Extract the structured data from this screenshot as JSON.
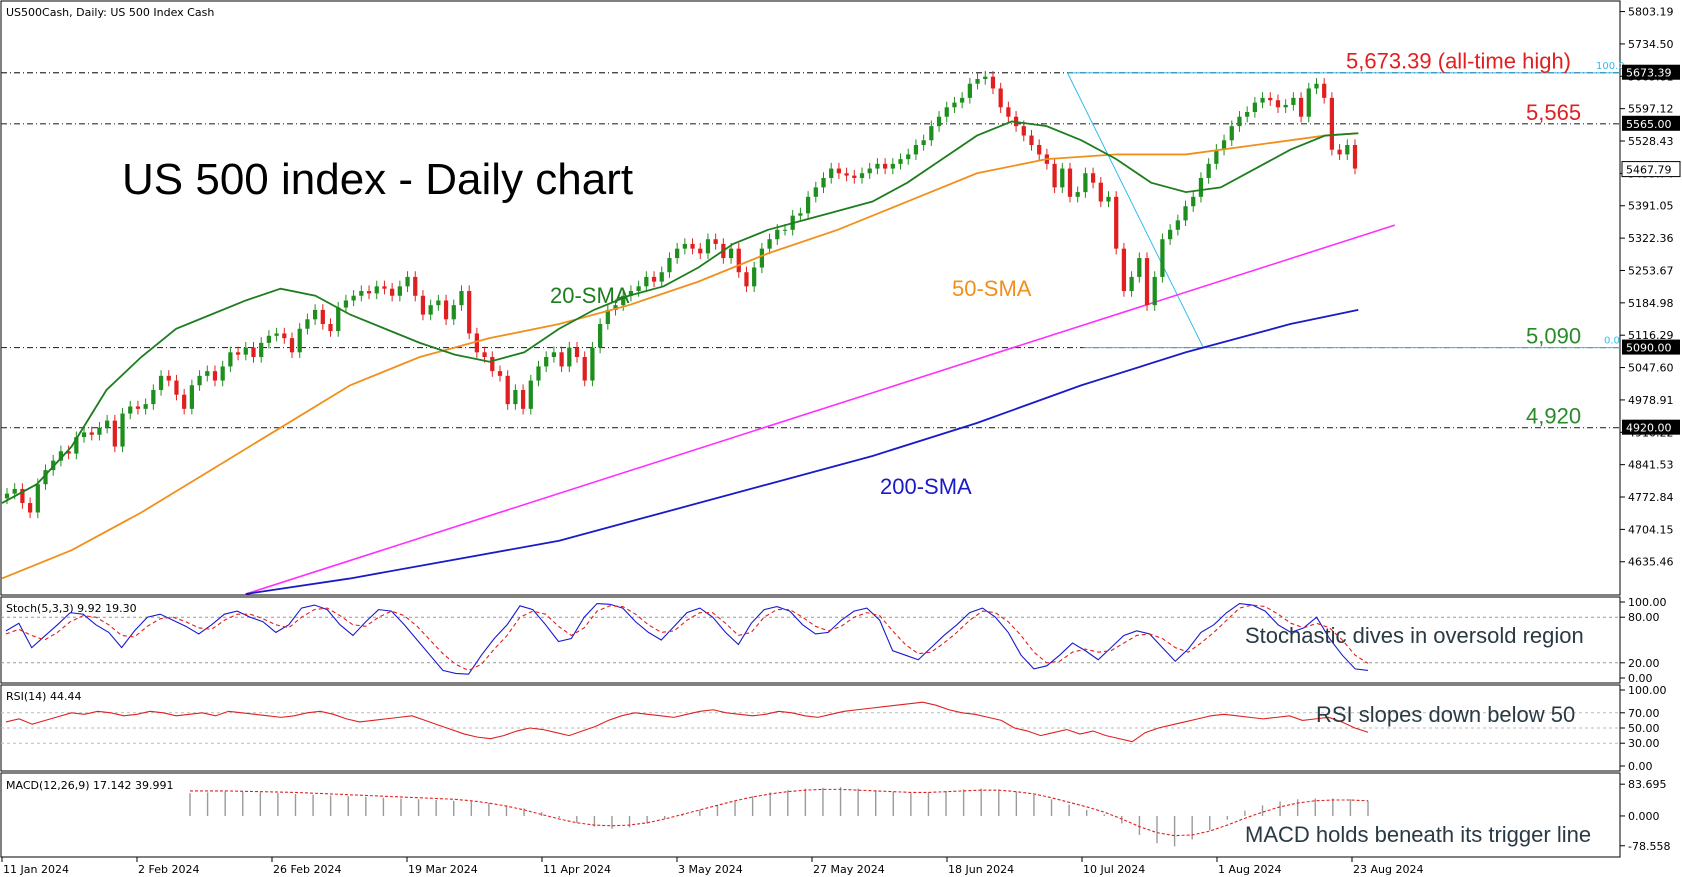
{
  "header": {
    "symbol_text": "US500Cash, Daily:  US 500 Index Cash"
  },
  "title": "US 500 index - Daily chart",
  "colors": {
    "bull": "#1e8f1e",
    "bear": "#e02020",
    "sma20": "#1e7d1e",
    "sma50": "#f0901a",
    "sma200": "#1a1ac8",
    "trendline": "#ff30ff",
    "fib": "#33bbee",
    "level_red": "#e02020",
    "level_green": "#2a8a2a"
  },
  "chart_data": {
    "type": "candlestick",
    "price_axis": {
      "ticks": [
        "5803.19",
        "5734.50",
        "5665.81",
        "5597.12",
        "5528.43",
        "5459.74",
        "5391.05",
        "5322.36",
        "5253.67",
        "5184.98",
        "5116.29",
        "5047.60",
        "4978.91",
        "4910.22",
        "4841.53",
        "4772.84",
        "4704.15",
        "4635.46"
      ],
      "range": [
        4567,
        5815
      ]
    },
    "date_axis": [
      "11 Jan 2024",
      "2 Feb 2024",
      "26 Feb 2024",
      "19 Mar 2024",
      "11 Apr 2024",
      "3 May 2024",
      "27 May 2024",
      "18 Jun 2024",
      "10 Jul 2024",
      "1 Aug 2024",
      "23 Aug 2024"
    ],
    "levels": [
      {
        "value": 5673.39,
        "label": "5,673.39 (all-time high)",
        "axis_label": "5673.39",
        "color": "red"
      },
      {
        "value": 5565,
        "label": "5,565",
        "axis_label": "5565.00",
        "color": "red"
      },
      {
        "value": 5090,
        "label": "5,090",
        "axis_label": "5090.00",
        "color": "green"
      },
      {
        "value": 4920,
        "label": "4,920",
        "axis_label": "4920.00",
        "color": "green"
      }
    ],
    "last_price": "5467.79",
    "fib_labels": {
      "top": "100.0",
      "bottom": "0.0"
    },
    "series_labels": {
      "sma20": "20-SMA",
      "sma50": "50-SMA",
      "sma200": "200-SMA"
    },
    "closes": [
      4780,
      4790,
      4760,
      4740,
      4800,
      4830,
      4850,
      4870,
      4865,
      4900,
      4910,
      4905,
      4920,
      4935,
      4880,
      4950,
      4965,
      4960,
      4970,
      5000,
      5030,
      5020,
      4990,
      4960,
      5010,
      5030,
      5040,
      5020,
      5050,
      5080,
      5075,
      5090,
      5070,
      5100,
      5115,
      5120,
      5110,
      5080,
      5130,
      5150,
      5170,
      5140,
      5125,
      5175,
      5190,
      5200,
      5210,
      5205,
      5220,
      5215,
      5200,
      5220,
      5240,
      5200,
      5160,
      5180,
      5190,
      5150,
      5180,
      5210,
      5120,
      5080,
      5070,
      5040,
      5030,
      4970,
      5000,
      4960,
      5020,
      5050,
      5070,
      5080,
      5050,
      5090,
      5070,
      5020,
      5090,
      5140,
      5170,
      5180,
      5200,
      5210,
      5220,
      5240,
      5230,
      5250,
      5280,
      5300,
      5310,
      5300,
      5290,
      5320,
      5310,
      5280,
      5300,
      5250,
      5220,
      5260,
      5300,
      5320,
      5340,
      5340,
      5370,
      5375,
      5410,
      5430,
      5450,
      5470,
      5460,
      5455,
      5450,
      5460,
      5470,
      5480,
      5470,
      5480,
      5490,
      5500,
      5520,
      5530,
      5560,
      5580,
      5600,
      5610,
      5620,
      5650,
      5660,
      5665,
      5640,
      5600,
      5580,
      5560,
      5540,
      5520,
      5500,
      5480,
      5430,
      5470,
      5410,
      5420,
      5460,
      5440,
      5400,
      5410,
      5300,
      5210,
      5240,
      5280,
      5180,
      5240,
      5320,
      5340,
      5360,
      5390,
      5410,
      5450,
      5480,
      5510,
      5530,
      5560,
      5580,
      5590,
      5610,
      5620,
      5615,
      5600,
      5605,
      5620,
      5580,
      5640,
      5650,
      5620,
      5510,
      5500,
      5520,
      5470
    ],
    "sma20": [
      [
        0,
        4760
      ],
      [
        20,
        4800
      ],
      [
        40,
        4880
      ],
      [
        60,
        5000
      ],
      [
        80,
        5070
      ],
      [
        100,
        5130
      ],
      [
        120,
        5160
      ],
      [
        140,
        5190
      ],
      [
        160,
        5215
      ],
      [
        180,
        5200
      ],
      [
        200,
        5160
      ],
      [
        220,
        5130
      ],
      [
        240,
        5100
      ],
      [
        260,
        5075
      ],
      [
        280,
        5060
      ],
      [
        300,
        5080
      ],
      [
        320,
        5130
      ],
      [
        340,
        5170
      ],
      [
        360,
        5200
      ],
      [
        380,
        5220
      ],
      [
        400,
        5260
      ],
      [
        420,
        5310
      ],
      [
        440,
        5340
      ],
      [
        460,
        5360
      ],
      [
        480,
        5380
      ],
      [
        500,
        5400
      ],
      [
        520,
        5440
      ],
      [
        540,
        5490
      ],
      [
        560,
        5540
      ],
      [
        580,
        5570
      ],
      [
        600,
        5560
      ],
      [
        620,
        5530
      ],
      [
        640,
        5490
      ],
      [
        660,
        5440
      ],
      [
        680,
        5420
      ],
      [
        700,
        5430
      ],
      [
        720,
        5470
      ],
      [
        740,
        5510
      ],
      [
        760,
        5540
      ],
      [
        779,
        5545
      ]
    ],
    "sma50": [
      [
        0,
        4600
      ],
      [
        40,
        4660
      ],
      [
        80,
        4740
      ],
      [
        120,
        4830
      ],
      [
        160,
        4920
      ],
      [
        200,
        5010
      ],
      [
        240,
        5070
      ],
      [
        280,
        5110
      ],
      [
        320,
        5140
      ],
      [
        360,
        5180
      ],
      [
        400,
        5230
      ],
      [
        440,
        5290
      ],
      [
        480,
        5340
      ],
      [
        520,
        5400
      ],
      [
        560,
        5460
      ],
      [
        600,
        5490
      ],
      [
        640,
        5500
      ],
      [
        680,
        5500
      ],
      [
        720,
        5520
      ],
      [
        760,
        5540
      ],
      [
        779,
        5545
      ]
    ],
    "sma200": [
      [
        140,
        4567
      ],
      [
        200,
        4600
      ],
      [
        260,
        4640
      ],
      [
        320,
        4680
      ],
      [
        380,
        4740
      ],
      [
        440,
        4800
      ],
      [
        500,
        4860
      ],
      [
        560,
        4930
      ],
      [
        620,
        5010
      ],
      [
        680,
        5080
      ],
      [
        740,
        5140
      ],
      [
        779,
        5170
      ]
    ],
    "trendline": [
      [
        140,
        4567
      ],
      [
        800,
        5350
      ]
    ],
    "fib_line": [
      [
        612,
        5673
      ],
      [
        690,
        5090
      ]
    ],
    "stoch": {
      "label": "Stoch(5,3,3) 9.92 19.30",
      "ticks": [
        "100.00",
        "80.00",
        "20.00",
        "0.00"
      ],
      "k": [
        62,
        72,
        40,
        55,
        70,
        86,
        84,
        70,
        60,
        40,
        62,
        80,
        84,
        76,
        68,
        58,
        70,
        84,
        88,
        80,
        74,
        60,
        70,
        92,
        96,
        90,
        70,
        56,
        74,
        90,
        88,
        70,
        50,
        30,
        10,
        6,
        5,
        30,
        52,
        70,
        95,
        90,
        70,
        48,
        52,
        80,
        98,
        97,
        92,
        74,
        60,
        50,
        68,
        86,
        92,
        80,
        60,
        44,
        72,
        90,
        94,
        88,
        70,
        58,
        60,
        76,
        88,
        92,
        76,
        36,
        30,
        24,
        40,
        56,
        70,
        86,
        92,
        80,
        60,
        30,
        12,
        16,
        30,
        46,
        36,
        24,
        40,
        56,
        62,
        58,
        40,
        22,
        38,
        60,
        70,
        86,
        98,
        96,
        88,
        70,
        60,
        66,
        80,
        52,
        30,
        12,
        9.92
      ],
      "d": [
        58,
        64,
        56,
        50,
        60,
        74,
        82,
        80,
        70,
        56,
        54,
        68,
        78,
        80,
        74,
        66,
        64,
        76,
        84,
        84,
        78,
        70,
        66,
        80,
        90,
        92,
        82,
        70,
        68,
        80,
        88,
        82,
        68,
        50,
        32,
        18,
        10,
        18,
        38,
        56,
        80,
        88,
        84,
        68,
        56,
        66,
        88,
        95,
        94,
        84,
        70,
        60,
        62,
        76,
        86,
        86,
        72,
        56,
        60,
        80,
        90,
        90,
        80,
        68,
        62,
        68,
        80,
        86,
        82,
        62,
        44,
        32,
        34,
        46,
        60,
        76,
        88,
        86,
        74,
        56,
        34,
        20,
        22,
        34,
        38,
        34,
        36,
        46,
        56,
        58,
        52,
        40,
        34,
        46,
        60,
        76,
        92,
        96,
        94,
        84,
        72,
        66,
        72,
        66,
        50,
        30,
        19.3
      ]
    },
    "rsi": {
      "label": "RSI(14) 44.44",
      "ticks": [
        "100.00",
        "70.00",
        "50.00",
        "30.00",
        "0.00"
      ],
      "values": [
        58,
        62,
        55,
        60,
        65,
        70,
        68,
        72,
        70,
        66,
        68,
        72,
        70,
        66,
        68,
        70,
        66,
        72,
        70,
        68,
        66,
        64,
        66,
        70,
        72,
        68,
        62,
        58,
        60,
        62,
        64,
        66,
        60,
        54,
        48,
        42,
        38,
        36,
        40,
        46,
        50,
        48,
        44,
        40,
        46,
        52,
        60,
        66,
        70,
        68,
        66,
        64,
        68,
        72,
        74,
        70,
        68,
        66,
        68,
        72,
        70,
        66,
        64,
        68,
        72,
        74,
        76,
        78,
        80,
        82,
        84,
        80,
        74,
        70,
        68,
        64,
        60,
        50,
        46,
        40,
        44,
        48,
        42,
        46,
        40,
        36,
        32,
        44,
        50,
        54,
        58,
        62,
        66,
        68,
        66,
        64,
        62,
        64,
        66,
        60,
        62,
        64,
        58,
        50,
        44.44
      ]
    },
    "macd": {
      "label": "MACD(12,26,9) 17.142 39.991",
      "ticks": [
        "83.695",
        "0.000",
        "-78.558"
      ],
      "range": [
        -95,
        100
      ],
      "hist": [
        60,
        62,
        65,
        64,
        62,
        60,
        58,
        56,
        54,
        52,
        50,
        48,
        46,
        44,
        42,
        40,
        38,
        34,
        28,
        20,
        10,
        -5,
        -18,
        -28,
        -34,
        -30,
        -20,
        -8,
        4,
        16,
        28,
        40,
        52,
        62,
        68,
        72,
        74,
        76,
        72,
        68,
        64,
        60,
        62,
        66,
        70,
        72,
        70,
        64,
        56,
        44,
        30,
        16,
        4,
        -20,
        -50,
        -72,
        -80,
        -62,
        -38,
        -10,
        14,
        28,
        38,
        44,
        46,
        46,
        44,
        40
      ],
      "signal": [
        66,
        66,
        66,
        65,
        64,
        63,
        62,
        60,
        58,
        56,
        54,
        52,
        50,
        48,
        46,
        44,
        40,
        34,
        26,
        16,
        4,
        -8,
        -18,
        -24,
        -26,
        -24,
        -18,
        -8,
        4,
        16,
        28,
        40,
        50,
        58,
        64,
        68,
        70,
        70,
        68,
        66,
        64,
        62,
        62,
        64,
        66,
        68,
        68,
        64,
        58,
        48,
        36,
        24,
        10,
        -8,
        -28,
        -44,
        -52,
        -50,
        -40,
        -24,
        -6,
        10,
        24,
        34,
        40,
        42,
        42,
        40
      ]
    }
  },
  "annotations": {
    "stoch": "Stochastic dives in oversold region",
    "rsi": "RSI slopes down below 50",
    "macd": "MACD holds beneath its trigger line"
  }
}
